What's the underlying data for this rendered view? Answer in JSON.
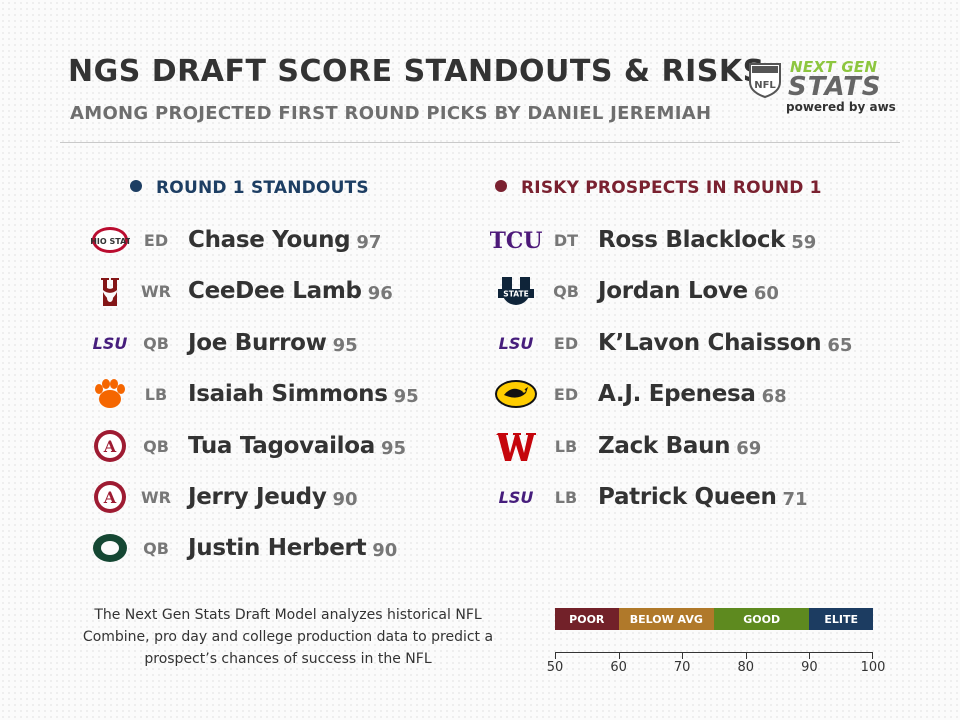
{
  "header": {
    "title": "NGS DRAFT SCORE STANDOUTS & RISKS",
    "subtitle": "AMONG PROJECTED FIRST ROUND PICKS BY DANIEL JEREMIAH"
  },
  "brand": {
    "line1": "NEXT GEN",
    "line2": "STATS",
    "powered": "powered by aws",
    "nfl": "NFL"
  },
  "standouts": {
    "heading": "ROUND 1 STANDOUTS",
    "color": "#1d3e63",
    "players": [
      {
        "school_icon": "ohio-state-logo",
        "pos": "ED",
        "name": "Chase Young",
        "score": "97"
      },
      {
        "school_icon": "oklahoma-logo",
        "pos": "WR",
        "name": "CeeDee Lamb",
        "score": "96"
      },
      {
        "school_icon": "lsu-logo",
        "pos": "QB",
        "name": "Joe Burrow",
        "score": "95"
      },
      {
        "school_icon": "clemson-logo",
        "pos": "LB",
        "name": "Isaiah Simmons",
        "score": "95"
      },
      {
        "school_icon": "alabama-logo",
        "pos": "QB",
        "name": "Tua Tagovailoa",
        "score": "95"
      },
      {
        "school_icon": "alabama-logo",
        "pos": "WR",
        "name": "Jerry Jeudy",
        "score": "90"
      },
      {
        "school_icon": "oregon-logo",
        "pos": "QB",
        "name": "Justin Herbert",
        "score": "90"
      }
    ]
  },
  "risks": {
    "heading": "RISKY PROSPECTS IN ROUND 1",
    "color": "#7a2130",
    "players": [
      {
        "school_icon": "tcu-logo",
        "pos": "DT",
        "name": "Ross Blacklock",
        "score": "59"
      },
      {
        "school_icon": "utah-state-logo",
        "pos": "QB",
        "name": "Jordan Love",
        "score": "60"
      },
      {
        "school_icon": "lsu-logo",
        "pos": "ED",
        "name": "K’Lavon Chaisson",
        "score": "65"
      },
      {
        "school_icon": "iowa-logo",
        "pos": "ED",
        "name": "A.J. Epenesa",
        "score": "68"
      },
      {
        "school_icon": "wisconsin-logo",
        "pos": "LB",
        "name": "Zack Baun",
        "score": "69"
      },
      {
        "school_icon": "lsu-logo",
        "pos": "LB",
        "name": "Patrick Queen",
        "score": "71"
      }
    ]
  },
  "logo_text": {
    "ohio_state": "OHIO STATE",
    "lsu": "LSU",
    "tcu": "TCU",
    "utah_state": "STATE"
  },
  "footnote": "The Next Gen Stats Draft Model analyzes historical NFL Combine, pro day and college production data to predict a prospect’s chances of success in the NFL",
  "scale": {
    "bands": [
      {
        "label": "POOR",
        "from": 50,
        "to": 60,
        "color": "#722129"
      },
      {
        "label": "BELOW AVG",
        "from": 60,
        "to": 75,
        "color": "#b0792a"
      },
      {
        "label": "GOOD",
        "from": 75,
        "to": 90,
        "color": "#5e8a1f"
      },
      {
        "label": "ELITE",
        "from": 90,
        "to": 100,
        "color": "#1c3c61"
      }
    ],
    "ticks": [
      "50",
      "60",
      "70",
      "80",
      "90",
      "100"
    ]
  }
}
